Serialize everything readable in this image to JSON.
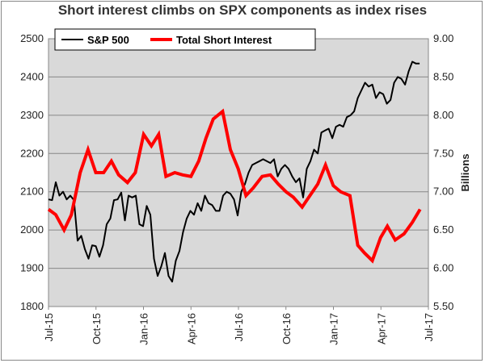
{
  "chart_data": {
    "type": "line",
    "title": "Short interest climbs on SPX components as index rises",
    "xlabel": "",
    "ylabel": "",
    "y2label": "Billions",
    "x_ticks": [
      "Jul-15",
      "Oct-15",
      "Jan-16",
      "Apr-16",
      "Jul-16",
      "Oct-16",
      "Jan-17",
      "Apr-17",
      "Jul-17"
    ],
    "ylim": [
      1800,
      2500
    ],
    "yticks": [
      "1800",
      "1900",
      "2000",
      "2100",
      "2200",
      "2300",
      "2400",
      "2500"
    ],
    "y2lim": [
      5.5,
      9.0
    ],
    "y2ticks": [
      "5.50",
      "6.00",
      "6.50",
      "7.00",
      "7.50",
      "8.00",
      "8.50",
      "9.00"
    ],
    "grid": "horizontal",
    "legend_position": "top",
    "background": "#d9d9d9",
    "series": [
      {
        "name": "S&P 500",
        "axis": "left",
        "color": "#000000",
        "points": [
          [
            "2015-07-01",
            2080
          ],
          [
            "2015-07-08",
            2078
          ],
          [
            "2015-07-15",
            2125
          ],
          [
            "2015-07-22",
            2090
          ],
          [
            "2015-07-29",
            2100
          ],
          [
            "2015-08-05",
            2080
          ],
          [
            "2015-08-12",
            2090
          ],
          [
            "2015-08-19",
            2078
          ],
          [
            "2015-08-26",
            1972
          ],
          [
            "2015-09-02",
            1985
          ],
          [
            "2015-09-09",
            1950
          ],
          [
            "2015-09-16",
            1925
          ],
          [
            "2015-09-23",
            1960
          ],
          [
            "2015-09-30",
            1958
          ],
          [
            "2015-10-07",
            1930
          ],
          [
            "2015-10-14",
            1960
          ],
          [
            "2015-10-21",
            2015
          ],
          [
            "2015-10-28",
            2030
          ],
          [
            "2015-11-04",
            2078
          ],
          [
            "2015-11-11",
            2080
          ],
          [
            "2015-11-18",
            2098
          ],
          [
            "2015-11-25",
            2025
          ],
          [
            "2015-12-02",
            2090
          ],
          [
            "2015-12-09",
            2085
          ],
          [
            "2015-12-16",
            2090
          ],
          [
            "2015-12-23",
            2015
          ],
          [
            "2015-12-30",
            2010
          ],
          [
            "2016-01-06",
            2063
          ],
          [
            "2016-01-13",
            2040
          ],
          [
            "2016-01-20",
            1925
          ],
          [
            "2016-01-27",
            1880
          ],
          [
            "2016-02-03",
            1905
          ],
          [
            "2016-02-10",
            1940
          ],
          [
            "2016-02-17",
            1880
          ],
          [
            "2016-02-24",
            1865
          ],
          [
            "2016-03-02",
            1920
          ],
          [
            "2016-03-09",
            1945
          ],
          [
            "2016-03-16",
            1995
          ],
          [
            "2016-03-23",
            2030
          ],
          [
            "2016-03-30",
            2050
          ],
          [
            "2016-04-06",
            2040
          ],
          [
            "2016-04-13",
            2070
          ],
          [
            "2016-04-20",
            2050
          ],
          [
            "2016-04-27",
            2090
          ],
          [
            "2016-05-04",
            2070
          ],
          [
            "2016-05-11",
            2065
          ],
          [
            "2016-05-18",
            2050
          ],
          [
            "2016-05-25",
            2050
          ],
          [
            "2016-06-01",
            2090
          ],
          [
            "2016-06-08",
            2100
          ],
          [
            "2016-06-15",
            2095
          ],
          [
            "2016-06-22",
            2080
          ],
          [
            "2016-06-29",
            2038
          ],
          [
            "2016-07-06",
            2100
          ],
          [
            "2016-07-13",
            2120
          ],
          [
            "2016-07-20",
            2150
          ],
          [
            "2016-07-27",
            2170
          ],
          [
            "2016-08-03",
            2175
          ],
          [
            "2016-08-10",
            2180
          ],
          [
            "2016-08-17",
            2185
          ],
          [
            "2016-08-24",
            2180
          ],
          [
            "2016-08-31",
            2175
          ],
          [
            "2016-09-07",
            2185
          ],
          [
            "2016-09-14",
            2140
          ],
          [
            "2016-09-21",
            2160
          ],
          [
            "2016-09-28",
            2170
          ],
          [
            "2016-10-05",
            2160
          ],
          [
            "2016-10-12",
            2140
          ],
          [
            "2016-10-19",
            2125
          ],
          [
            "2016-10-26",
            2135
          ],
          [
            "2016-11-02",
            2085
          ],
          [
            "2016-11-09",
            2160
          ],
          [
            "2016-11-16",
            2180
          ],
          [
            "2016-11-23",
            2210
          ],
          [
            "2016-11-30",
            2200
          ],
          [
            "2016-12-07",
            2255
          ],
          [
            "2016-12-14",
            2260
          ],
          [
            "2016-12-21",
            2265
          ],
          [
            "2016-12-28",
            2240
          ],
          [
            "2017-01-04",
            2270
          ],
          [
            "2017-01-11",
            2275
          ],
          [
            "2017-01-18",
            2270
          ],
          [
            "2017-01-25",
            2295
          ],
          [
            "2017-02-01",
            2300
          ],
          [
            "2017-02-08",
            2310
          ],
          [
            "2017-02-15",
            2345
          ],
          [
            "2017-02-22",
            2365
          ],
          [
            "2017-03-01",
            2385
          ],
          [
            "2017-03-08",
            2375
          ],
          [
            "2017-03-15",
            2380
          ],
          [
            "2017-03-22",
            2345
          ],
          [
            "2017-03-29",
            2360
          ],
          [
            "2017-04-05",
            2355
          ],
          [
            "2017-04-12",
            2330
          ],
          [
            "2017-04-19",
            2340
          ],
          [
            "2017-04-26",
            2385
          ],
          [
            "2017-05-03",
            2400
          ],
          [
            "2017-05-10",
            2395
          ],
          [
            "2017-05-17",
            2380
          ],
          [
            "2017-05-24",
            2415
          ],
          [
            "2017-05-31",
            2440
          ],
          [
            "2017-06-07",
            2435
          ],
          [
            "2017-06-14",
            2435
          ]
        ]
      },
      {
        "name": "Total Short Interest",
        "axis": "right",
        "color": "#ff0000",
        "points": [
          [
            "2015-07-01",
            6.77
          ],
          [
            "2015-07-15",
            6.7
          ],
          [
            "2015-07-31",
            6.5
          ],
          [
            "2015-08-14",
            6.7
          ],
          [
            "2015-08-31",
            7.25
          ],
          [
            "2015-09-15",
            7.55
          ],
          [
            "2015-09-30",
            7.25
          ],
          [
            "2015-10-15",
            7.25
          ],
          [
            "2015-10-30",
            7.4
          ],
          [
            "2015-11-13",
            7.22
          ],
          [
            "2015-11-30",
            7.12
          ],
          [
            "2015-12-15",
            7.25
          ],
          [
            "2015-12-31",
            7.75
          ],
          [
            "2016-01-15",
            7.6
          ],
          [
            "2016-01-29",
            7.75
          ],
          [
            "2016-02-12",
            7.2
          ],
          [
            "2016-02-29",
            7.25
          ],
          [
            "2016-03-15",
            7.22
          ],
          [
            "2016-03-31",
            7.2
          ],
          [
            "2016-04-15",
            7.4
          ],
          [
            "2016-04-29",
            7.7
          ],
          [
            "2016-05-13",
            7.95
          ],
          [
            "2016-05-31",
            8.05
          ],
          [
            "2016-06-15",
            7.55
          ],
          [
            "2016-06-30",
            7.3
          ],
          [
            "2016-07-15",
            6.95
          ],
          [
            "2016-07-29",
            7.05
          ],
          [
            "2016-08-15",
            7.2
          ],
          [
            "2016-08-31",
            7.22
          ],
          [
            "2016-09-15",
            7.1
          ],
          [
            "2016-09-30",
            7.0
          ],
          [
            "2016-10-14",
            6.93
          ],
          [
            "2016-10-31",
            6.8
          ],
          [
            "2016-11-15",
            6.95
          ],
          [
            "2016-11-30",
            7.1
          ],
          [
            "2016-12-15",
            7.35
          ],
          [
            "2016-12-30",
            7.08
          ],
          [
            "2017-01-13",
            7.0
          ],
          [
            "2017-01-31",
            6.95
          ],
          [
            "2017-02-15",
            6.3
          ],
          [
            "2017-02-28",
            6.2
          ],
          [
            "2017-03-15",
            6.1
          ],
          [
            "2017-03-31",
            6.4
          ],
          [
            "2017-04-13",
            6.55
          ],
          [
            "2017-04-28",
            6.37
          ],
          [
            "2017-05-15",
            6.45
          ],
          [
            "2017-05-31",
            6.6
          ],
          [
            "2017-06-15",
            6.77
          ]
        ]
      }
    ]
  }
}
